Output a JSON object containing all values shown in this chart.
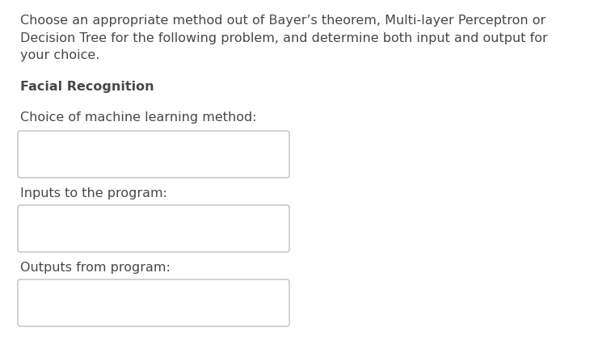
{
  "background_color": "#ffffff",
  "intro_text": "Choose an appropriate method out of Bayer’s theorem, Multi-layer Perceptron or\nDecision Tree for the following problem, and determine both input and output for\nyour choice.",
  "bold_label": "Facial Recognition",
  "label1": "Choice of machine learning method:",
  "label2": "Inputs to the program:",
  "label3": "Outputs from program:",
  "text_color": "#484848",
  "box_border_color": "#c0c0c0",
  "box_fill_color": "#ffffff",
  "font_size_intro": 11.5,
  "font_size_bold": 11.5,
  "font_size_label": 11.5,
  "fig_width": 7.61,
  "fig_height": 4.47,
  "dpi": 100
}
